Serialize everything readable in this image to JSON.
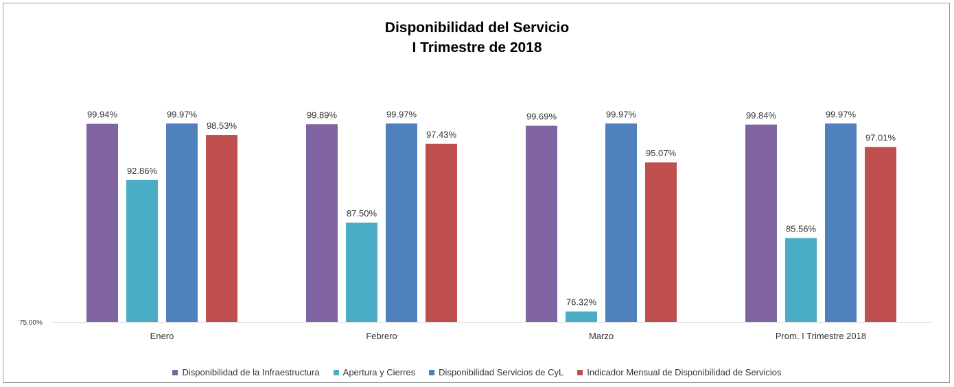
{
  "chart_data": {
    "type": "bar",
    "title": "Disponibilidad del Servicio",
    "subtitle": "I Trimestre de 2018",
    "categories": [
      "Enero",
      "Febrero",
      "Marzo",
      "Prom. I Trimestre 2018"
    ],
    "series": [
      {
        "name": "Disponibilidad de la Infraestructura",
        "color": "#8064a2",
        "values": [
          99.94,
          99.89,
          99.69,
          99.84
        ],
        "labels": [
          "99.94%",
          "99.89%",
          "99.69%",
          "99.84%"
        ]
      },
      {
        "name": "Apertura y Cierres",
        "color": "#4bacc6",
        "values": [
          92.86,
          87.5,
          76.32,
          85.56
        ],
        "labels": [
          "92.86%",
          "87.50%",
          "76.32%",
          "85.56%"
        ]
      },
      {
        "name": "Disponibilidad Servicios de CyL",
        "color": "#4f81bd",
        "values": [
          99.97,
          99.97,
          99.97,
          99.97
        ],
        "labels": [
          "99.97%",
          "99.97%",
          "99.97%",
          "99.97%"
        ]
      },
      {
        "name": "Indicador Mensual de Disponibilidad de Servicios",
        "color": "#c0504d",
        "values": [
          98.53,
          97.43,
          95.07,
          97.01
        ],
        "labels": [
          "98.53%",
          "97.43%",
          "95.07%",
          "97.01%"
        ]
      }
    ],
    "ylim": [
      75,
      100
    ],
    "yticks": [
      "75.00%"
    ],
    "grid": false,
    "legend_position": "bottom"
  }
}
